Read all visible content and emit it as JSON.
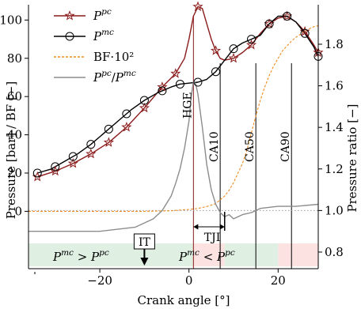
{
  "chart_data": {
    "type": "line",
    "xlabel": "Crank angle [°]",
    "ylabel_left": "Pressure [bar] / BF [−]",
    "ylabel_right": "Pressure ratio [−]",
    "x_ticks": [
      "−20",
      "0",
      "20"
    ],
    "y_left_ticks": [
      "0",
      "20",
      "40",
      "60",
      "80",
      "100"
    ],
    "y_right_ticks": [
      "0.8",
      "1.0",
      "1.2",
      "1.4",
      "1.6",
      "1.8"
    ],
    "xlim": [
      -36,
      29
    ],
    "ylim_left": [
      -30,
      108
    ],
    "ylim_right": [
      0.72,
      1.99
    ],
    "legend": {
      "placement": "top-left",
      "entries": [
        "P^pc",
        "P^mc",
        "BF·10²",
        "P^pc/P^mc"
      ]
    },
    "colors": {
      "pc": "#8b1a1a",
      "mc": "#000000",
      "bf": "#f08c1e",
      "ratio": "#8c8c8c",
      "green_band": "#dff0e2",
      "red_band": "#fde2e2",
      "green_text": "#1e9a4c",
      "red_text": "#e0202a",
      "hge_line": "#8b1a1a"
    },
    "series": [
      {
        "name": "P^pc",
        "axis": "left",
        "x": [
          -34,
          -30,
          -26,
          -22,
          -18,
          -14,
          -10,
          -6,
          -3,
          -1,
          0,
          1,
          2,
          3,
          4,
          5,
          6,
          7,
          8,
          10,
          12,
          14,
          16,
          18,
          20,
          22,
          24,
          26,
          28,
          29
        ],
        "y": [
          18,
          21,
          25,
          30,
          36,
          44,
          54,
          65,
          72,
          80,
          90,
          102,
          107,
          106,
          98,
          90,
          84,
          80,
          79,
          80,
          83,
          87,
          93,
          98,
          101,
          102,
          99,
          94,
          87,
          83
        ]
      },
      {
        "name": "P^mc",
        "axis": "left",
        "x": [
          -34,
          -31,
          -28,
          -25,
          -22,
          -19,
          -16,
          -13,
          -10,
          -7,
          -4,
          -2,
          0,
          2,
          4,
          6,
          8,
          10,
          12,
          14,
          16,
          18,
          20,
          22,
          24,
          26,
          28,
          29
        ],
        "y": [
          20,
          22,
          26,
          30,
          35,
          41,
          47,
          53,
          58,
          62,
          65,
          66.5,
          67,
          67.5,
          69,
          73,
          79,
          85,
          88,
          90,
          92,
          98,
          102,
          102,
          99,
          93,
          86,
          81
        ]
      },
      {
        "name": "BF·10²",
        "axis": "left",
        "x": [
          -36,
          -10,
          -4,
          0,
          2,
          4,
          6,
          8,
          9,
          10,
          11,
          12,
          13,
          14,
          15,
          16,
          17,
          18,
          19,
          20,
          21,
          22,
          23,
          24,
          25,
          26,
          27,
          28,
          29
        ],
        "y": [
          0,
          0,
          0.3,
          1,
          1.5,
          2.5,
          4,
          8,
          11,
          15,
          20,
          25,
          32,
          41,
          50,
          58,
          65,
          71,
          76,
          80,
          84,
          86.5,
          89,
          91,
          92.5,
          94,
          95.5,
          96.5,
          97
        ]
      },
      {
        "name": "P^pc/P^mc",
        "axis": "right",
        "x": [
          -36,
          -20,
          -12,
          -8,
          -6,
          -4,
          -3,
          -2,
          -1,
          0,
          0.5,
          1,
          1.5,
          2,
          3,
          4,
          5,
          6,
          7,
          8,
          9,
          10,
          12,
          14,
          16,
          20,
          24,
          29
        ],
        "y": [
          0.9,
          0.9,
          0.92,
          0.96,
          1.0,
          1.07,
          1.13,
          1.2,
          1.3,
          1.43,
          1.55,
          1.62,
          1.61,
          1.56,
          1.4,
          1.22,
          1.1,
          1.03,
          0.99,
          0.97,
          0.98,
          0.96,
          0.98,
          0.99,
          1.01,
          1.02,
          1.02,
          1.03
        ]
      }
    ],
    "markers": {
      "P^pc": {
        "x": [
          -34,
          -30,
          -26,
          -22,
          -18,
          -14,
          -10,
          -6,
          -3,
          2,
          6,
          10,
          14,
          18,
          22,
          26,
          29
        ],
        "shape": "star"
      },
      "P^mc": {
        "x": [
          -34,
          -30,
          -26,
          -22,
          -18,
          -14,
          -10,
          -6,
          -2,
          2,
          6,
          10,
          14,
          18,
          22,
          26,
          29
        ],
        "shape": "circle"
      }
    },
    "vertical_lines": [
      {
        "x": 1,
        "label": "HGE",
        "color": "hge_line"
      },
      {
        "x": 7,
        "label": "CA10",
        "color": "mc"
      },
      {
        "x": 15,
        "label": "CA50",
        "color": "mc"
      },
      {
        "x": 23,
        "label": "CA90",
        "color": "mc"
      }
    ],
    "reference_line": {
      "axis": "right",
      "y": 1.0,
      "style": "dotted"
    },
    "annotations": {
      "tji_label": "TJI",
      "tji_span": [
        1,
        8
      ],
      "it_label": "IT",
      "it_x": -10,
      "region_mc_greater": "P^mc > P^pc",
      "region_mc_less": "P^mc < P^pc"
    },
    "bands": [
      {
        "from": -36,
        "to": 1,
        "color": "green_band"
      },
      {
        "from": 1,
        "to": 8,
        "color": "red_band"
      },
      {
        "from": 8,
        "to": 10,
        "color": "green_band"
      },
      {
        "from": 10,
        "to": 20,
        "color": "green_band"
      },
      {
        "from": 20,
        "to": 29,
        "color": "red_band"
      }
    ]
  }
}
